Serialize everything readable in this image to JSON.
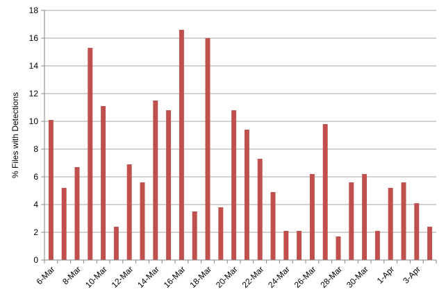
{
  "chart_data": {
    "type": "bar",
    "ylabel": "% Files with Detections",
    "ylim": [
      0,
      18
    ],
    "yticks": [
      0,
      2,
      4,
      6,
      8,
      10,
      12,
      14,
      16,
      18
    ],
    "grid": true,
    "colors": {
      "bar": "#C0504D",
      "grid": "#a6a6a6",
      "axis": "#868686"
    },
    "categories": [
      "6-Mar",
      "7-Mar",
      "8-Mar",
      "9-Mar",
      "10-Mar",
      "11-Mar",
      "12-Mar",
      "13-Mar",
      "14-Mar",
      "15-Mar",
      "16-Mar",
      "17-Mar",
      "18-Mar",
      "19-Mar",
      "20-Mar",
      "21-Mar",
      "22-Mar",
      "23-Mar",
      "24-Mar",
      "25-Mar",
      "26-Mar",
      "27-Mar",
      "28-Mar",
      "29-Mar",
      "30-Mar",
      "31-Mar",
      "1-Apr",
      "2-Apr",
      "3-Apr",
      "4-Apr"
    ],
    "x_tick_labels": [
      "6-Mar",
      "8-Mar",
      "10-Mar",
      "12-Mar",
      "14-Mar",
      "16-Mar",
      "18-Mar",
      "20-Mar",
      "22-Mar",
      "24-Mar",
      "26-Mar",
      "28-Mar",
      "30-Mar",
      "1-Apr",
      "3-Apr"
    ],
    "values": [
      10.1,
      5.2,
      6.7,
      15.3,
      11.1,
      2.4,
      6.9,
      5.6,
      11.5,
      10.8,
      16.6,
      3.5,
      16.0,
      3.8,
      10.8,
      9.4,
      7.3,
      4.9,
      2.1,
      2.1,
      6.2,
      9.8,
      1.7,
      5.6,
      6.2,
      2.1,
      5.2,
      5.6,
      4.1,
      2.4
    ]
  }
}
